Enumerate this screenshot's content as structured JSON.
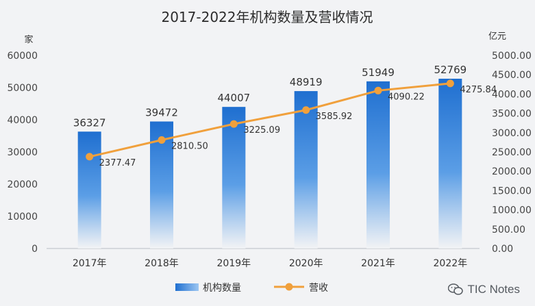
{
  "chart_data": {
    "type": "bar",
    "title": "2017-2022年机构数量及营收情况",
    "categories": [
      "2017年",
      "2018年",
      "2019年",
      "2020年",
      "2021年",
      "2022年"
    ],
    "series": [
      {
        "name": "机构数量",
        "type": "bar",
        "axis": "left",
        "values": [
          36327,
          39472,
          44007,
          48919,
          51949,
          52769
        ],
        "labels": [
          "36327",
          "39472",
          "44007",
          "48919",
          "51949",
          "52769"
        ],
        "color": "#2a78d6"
      },
      {
        "name": "营收",
        "type": "line",
        "axis": "right",
        "values": [
          2377.47,
          2810.5,
          3225.09,
          3585.92,
          4090.22,
          4275.84
        ],
        "labels": [
          "2377.47",
          "2810.50",
          "3225.09",
          "3585.92",
          "4090.22",
          "4275.84"
        ],
        "color": "#f0a03c"
      }
    ],
    "y_left": {
      "unit": "家",
      "ylim": [
        0,
        60000
      ],
      "ticks": [
        "0",
        "10000",
        "20000",
        "30000",
        "40000",
        "50000",
        "60000"
      ]
    },
    "y_right": {
      "unit": "亿元",
      "ylim": [
        0,
        5000
      ],
      "ticks": [
        "0.00",
        "500.00",
        "1000.00",
        "1500.00",
        "2000.00",
        "2500.00",
        "3000.00",
        "3500.00",
        "4000.00",
        "4500.00",
        "5000.00"
      ]
    },
    "grid": false,
    "legend_position": "bottom"
  },
  "watermark": {
    "text": "TIC Notes",
    "icon": "wechat-icon"
  }
}
